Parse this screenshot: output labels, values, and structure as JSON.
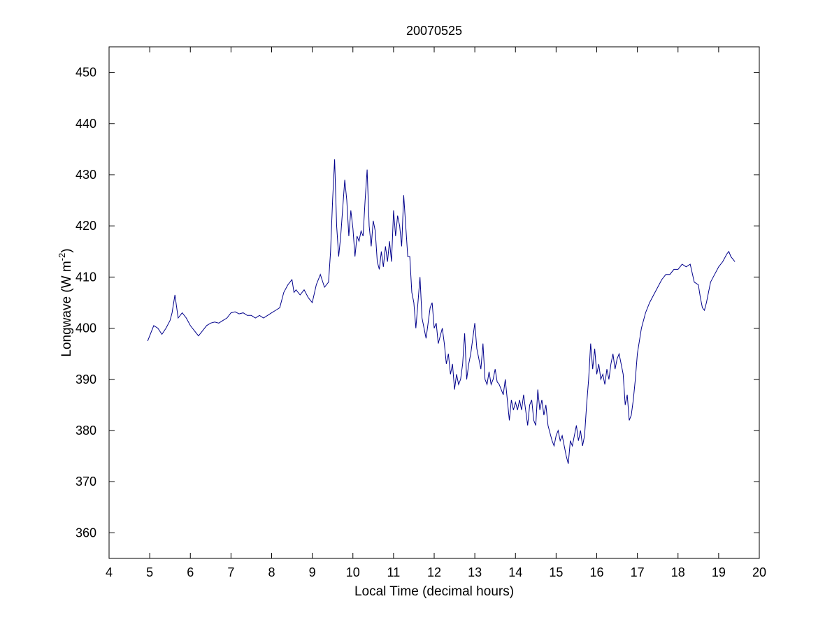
{
  "chart_data": {
    "type": "line",
    "title": "20070525",
    "xlabel": "Local Time (decimal hours)",
    "ylabel": {
      "main": "Longwave (W m",
      "sup": "-2",
      "close": ")"
    },
    "xlim": [
      4,
      20
    ],
    "ylim": [
      355,
      455
    ],
    "xticks": [
      4,
      5,
      6,
      7,
      8,
      9,
      10,
      11,
      12,
      13,
      14,
      15,
      16,
      17,
      18,
      19,
      20
    ],
    "yticks": [
      360,
      370,
      380,
      390,
      400,
      410,
      420,
      430,
      440,
      450
    ],
    "grid": false,
    "line_color": "#00008b",
    "series": [
      {
        "x": [
          4.95,
          5.0,
          5.1,
          5.2,
          5.3,
          5.4,
          5.5,
          5.55,
          5.62,
          5.7,
          5.8,
          5.9,
          6.0,
          6.1,
          6.2,
          6.3,
          6.4,
          6.5,
          6.6,
          6.7,
          6.8,
          6.9,
          7.0,
          7.1,
          7.2,
          7.3,
          7.4,
          7.5,
          7.6,
          7.7,
          7.8,
          7.9,
          8.0,
          8.1,
          8.2,
          8.3,
          8.4,
          8.5,
          8.55,
          8.6,
          8.7,
          8.8,
          8.9,
          9.0,
          9.1,
          9.2,
          9.3,
          9.4,
          9.45,
          9.5,
          9.55,
          9.6,
          9.65,
          9.7,
          9.8,
          9.85,
          9.9,
          9.95,
          10.0,
          10.05,
          10.1,
          10.15,
          10.2,
          10.25,
          10.3,
          10.35,
          10.4,
          10.45,
          10.5,
          10.55,
          10.6,
          10.65,
          10.7,
          10.75,
          10.8,
          10.85,
          10.9,
          10.95,
          11.0,
          11.05,
          11.1,
          11.15,
          11.2,
          11.25,
          11.3,
          11.35,
          11.4,
          11.45,
          11.5,
          11.55,
          11.6,
          11.65,
          11.7,
          11.75,
          11.8,
          11.85,
          11.9,
          11.95,
          12.0,
          12.05,
          12.1,
          12.15,
          12.2,
          12.25,
          12.3,
          12.35,
          12.4,
          12.45,
          12.5,
          12.55,
          12.6,
          12.65,
          12.7,
          12.75,
          12.8,
          12.85,
          12.9,
          12.95,
          13.0,
          13.05,
          13.1,
          13.15,
          13.2,
          13.25,
          13.3,
          13.35,
          13.4,
          13.45,
          13.5,
          13.55,
          13.6,
          13.65,
          13.7,
          13.75,
          13.8,
          13.85,
          13.9,
          13.95,
          14.0,
          14.05,
          14.1,
          14.15,
          14.2,
          14.25,
          14.3,
          14.35,
          14.4,
          14.45,
          14.5,
          14.55,
          14.6,
          14.65,
          14.7,
          14.75,
          14.8,
          14.85,
          14.9,
          14.95,
          15.0,
          15.05,
          15.1,
          15.15,
          15.2,
          15.25,
          15.3,
          15.35,
          15.4,
          15.45,
          15.5,
          15.55,
          15.6,
          15.65,
          15.7,
          15.75,
          15.8,
          15.85,
          15.9,
          15.95,
          16.0,
          16.05,
          16.1,
          16.15,
          16.2,
          16.25,
          16.3,
          16.35,
          16.4,
          16.45,
          16.5,
          16.55,
          16.6,
          16.65,
          16.7,
          16.75,
          16.8,
          16.85,
          16.9,
          16.95,
          17.0,
          17.1,
          17.2,
          17.3,
          17.4,
          17.5,
          17.6,
          17.7,
          17.8,
          17.9,
          18.0,
          18.1,
          18.2,
          18.3,
          18.4,
          18.5,
          18.55,
          18.6,
          18.65,
          18.7,
          18.8,
          18.9,
          19.0,
          19.1,
          19.2,
          19.25,
          19.3,
          19.4
        ],
        "y": [
          397.5,
          398.5,
          400.5,
          400.0,
          398.8,
          400.0,
          401.5,
          403.0,
          406.5,
          402.0,
          403.0,
          402.0,
          400.5,
          399.5,
          398.5,
          399.5,
          400.5,
          401.0,
          401.2,
          401.0,
          401.5,
          402.0,
          403.0,
          403.2,
          402.8,
          403.0,
          402.5,
          402.5,
          402.0,
          402.5,
          402.0,
          402.5,
          403.0,
          403.5,
          404.0,
          407.0,
          408.5,
          409.5,
          407.0,
          407.5,
          406.5,
          407.5,
          406.0,
          405.0,
          408.5,
          410.5,
          408.0,
          409.0,
          415.0,
          425.0,
          433.0,
          420.0,
          414.0,
          418.0,
          429.0,
          425.0,
          418.0,
          423.0,
          419.5,
          414.0,
          418.0,
          417.0,
          419.0,
          418.0,
          425.0,
          431.0,
          420.0,
          416.0,
          421.0,
          419.0,
          413.0,
          411.5,
          415.0,
          412.0,
          416.0,
          413.0,
          417.0,
          413.0,
          423.0,
          418.0,
          422.0,
          420.0,
          416.0,
          426.0,
          420.0,
          414.0,
          414.0,
          407.0,
          405.0,
          400.0,
          405.0,
          410.0,
          402.0,
          400.0,
          398.0,
          401.0,
          404.0,
          405.0,
          400.0,
          401.0,
          397.0,
          398.5,
          400.0,
          397.0,
          393.0,
          395.0,
          391.0,
          393.0,
          388.0,
          391.0,
          389.0,
          390.0,
          393.0,
          399.0,
          390.0,
          393.0,
          395.0,
          398.0,
          401.0,
          396.0,
          394.0,
          392.0,
          397.0,
          390.0,
          389.0,
          391.5,
          389.0,
          390.0,
          392.0,
          389.5,
          389.0,
          388.0,
          387.0,
          390.0,
          386.0,
          382.0,
          386.0,
          384.0,
          385.5,
          384.0,
          386.0,
          384.0,
          387.0,
          384.0,
          381.0,
          385.0,
          386.0,
          382.0,
          381.0,
          388.0,
          384.0,
          386.0,
          383.0,
          385.0,
          381.0,
          379.5,
          378.0,
          377.0,
          379.0,
          380.0,
          378.0,
          379.0,
          377.0,
          375.0,
          373.5,
          378.0,
          377.0,
          379.0,
          381.0,
          378.0,
          380.0,
          377.0,
          379.0,
          385.0,
          390.0,
          397.0,
          392.0,
          396.0,
          391.0,
          393.0,
          390.0,
          391.0,
          389.0,
          392.0,
          390.0,
          393.0,
          395.0,
          392.0,
          394.0,
          395.0,
          393.0,
          391.0,
          385.0,
          387.0,
          382.0,
          383.0,
          386.0,
          390.0,
          395.0,
          400.0,
          403.0,
          405.0,
          406.5,
          408.0,
          409.5,
          410.5,
          410.5,
          411.5,
          411.5,
          412.5,
          412.0,
          412.5,
          409.0,
          408.5,
          406.0,
          404.0,
          403.5,
          405.0,
          409.0,
          410.5,
          412.0,
          413.0,
          414.5,
          415.0,
          414.0,
          413.0
        ]
      }
    ]
  }
}
